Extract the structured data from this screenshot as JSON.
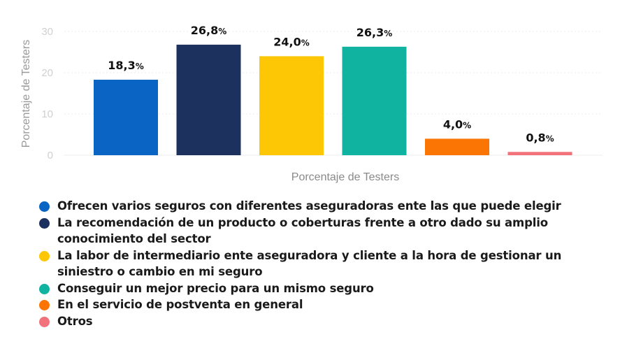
{
  "chart_data": {
    "type": "bar",
    "ylabel": "Porcentaje de Testers",
    "xlabel": "Porcentaje de Testers",
    "ylim": [
      0,
      30
    ],
    "yticks": [
      "0",
      "10",
      "20",
      "30"
    ],
    "grid": true,
    "legend_position": "bottom",
    "categories": [
      "Ofrecen varios seguros con diferentes aseguradoras ente las que puede elegir",
      "La recomendación de un producto o coberturas frente a otro dado su amplio conocimiento del sector",
      "La labor de intermediario ente aseguradora y cliente a la hora de gestionar un siniestro o cambio en mi seguro",
      "Conseguir un mejor precio para un mismo seguro",
      "En el servicio de postventa en general",
      "Otros"
    ],
    "values": [
      18.3,
      26.8,
      24.0,
      26.3,
      4.0,
      0.8
    ],
    "data_labels": [
      "18,3",
      "26,8",
      "24,0",
      "26,3",
      "4,0",
      "0,8"
    ],
    "unit": "%",
    "colors": [
      "#0a64c4",
      "#1c315e",
      "#fdc705",
      "#0fb3a0",
      "#fb7505",
      "#f1727a"
    ]
  }
}
